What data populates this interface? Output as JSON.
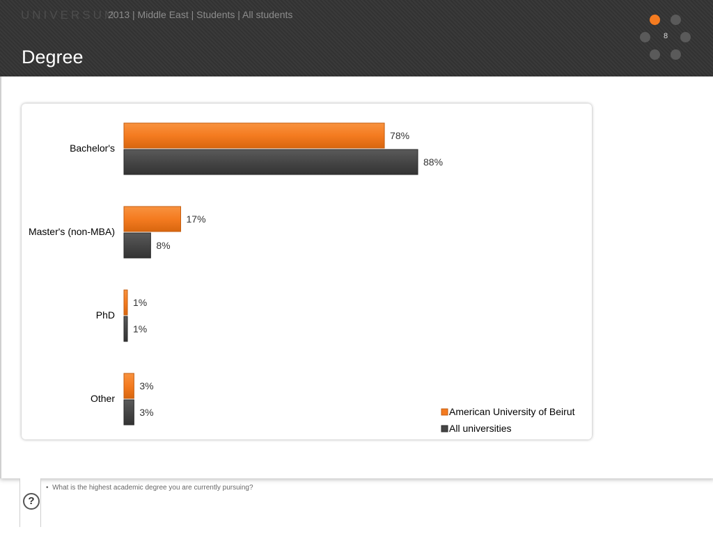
{
  "header": {
    "logo": "UNIVERSUM",
    "subtitle": "2013 | Middle East | Students | All students",
    "title": "Degree",
    "page_number": "8"
  },
  "colors": {
    "primary": "#f47b20",
    "secondary": "#464646"
  },
  "chart_data": {
    "type": "bar",
    "orientation": "horizontal",
    "categories": [
      "Bachelor's",
      "Master's (non-MBA)",
      "PhD",
      "Other"
    ],
    "series": [
      {
        "name": "American University of Beirut",
        "color": "#f47b20",
        "values": [
          78,
          17,
          1,
          3
        ]
      },
      {
        "name": "All universities",
        "color": "#464646",
        "values": [
          88,
          8,
          1,
          3
        ]
      }
    ],
    "data_labels": [
      [
        "78%",
        "17%",
        "1%",
        "3%"
      ],
      [
        "88%",
        "8%",
        "1%",
        "3%"
      ]
    ],
    "xlim": [
      0,
      100
    ],
    "grid": false,
    "legend_position": "bottom-right"
  },
  "footnote": "What is the highest academic degree you are currently pursuing?",
  "help_icon_label": "?"
}
